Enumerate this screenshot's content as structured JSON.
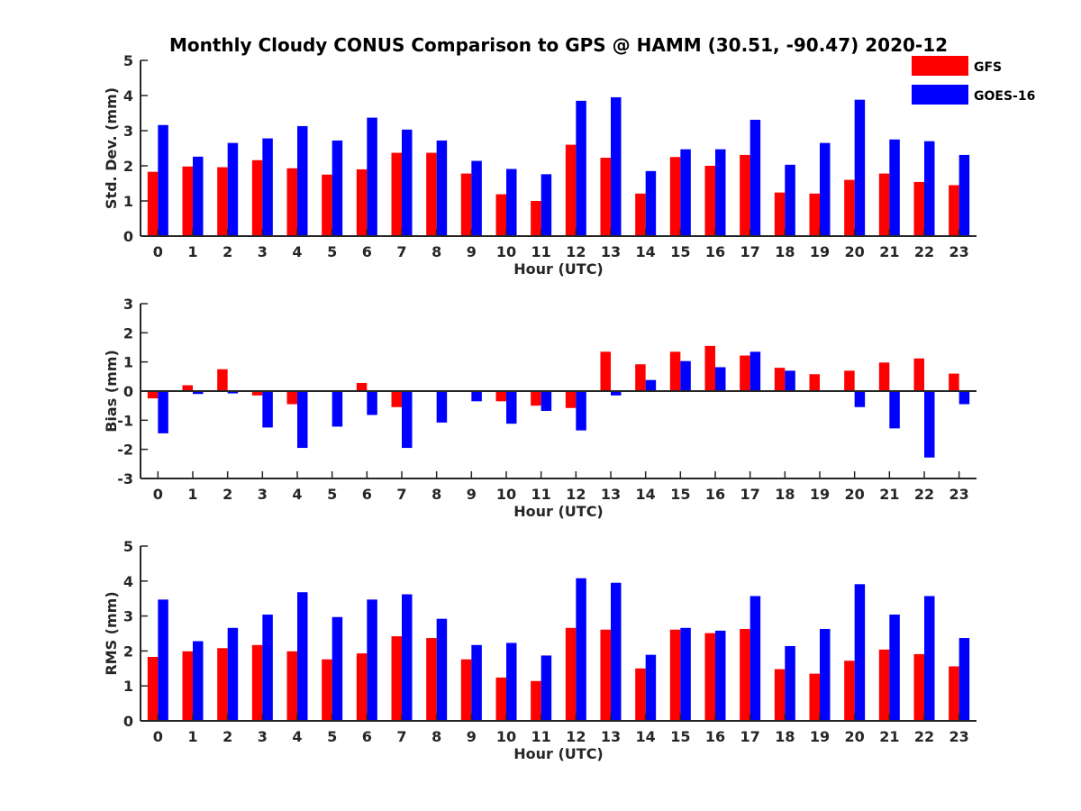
{
  "title": "Monthly Cloudy CONUS Comparison to GPS @ HAMM (30.51, -90.47) 2020-12",
  "legend": [
    {
      "name": "GFS",
      "color": "#ff0000"
    },
    {
      "name": "GOES-16",
      "color": "#0000ff"
    }
  ],
  "chart_data": [
    {
      "type": "bar",
      "xlabel": "Hour (UTC)",
      "ylabel": "Std. Dev. (mm)",
      "ylim": [
        0,
        5
      ],
      "yticks": [
        0,
        1,
        2,
        3,
        4,
        5
      ],
      "categories": [
        "0",
        "1",
        "2",
        "3",
        "4",
        "5",
        "6",
        "7",
        "8",
        "9",
        "10",
        "11",
        "12",
        "13",
        "14",
        "15",
        "16",
        "17",
        "18",
        "19",
        "20",
        "21",
        "22",
        "23"
      ],
      "series": [
        {
          "name": "GFS",
          "values": [
            1.83,
            1.98,
            1.96,
            2.16,
            1.93,
            1.75,
            1.9,
            2.37,
            2.37,
            1.78,
            1.19,
            1.0,
            2.6,
            2.23,
            1.21,
            2.25,
            2.0,
            2.31,
            1.24,
            1.21,
            1.6,
            1.78,
            1.54,
            1.45
          ]
        },
        {
          "name": "GOES-16",
          "values": [
            3.16,
            2.26,
            2.65,
            2.78,
            3.13,
            2.72,
            3.37,
            3.03,
            2.72,
            2.14,
            1.91,
            1.76,
            3.85,
            3.95,
            1.85,
            2.47,
            2.47,
            3.31,
            2.03,
            2.65,
            3.88,
            2.75,
            2.7,
            2.31
          ]
        }
      ]
    },
    {
      "type": "bar",
      "xlabel": "Hour (UTC)",
      "ylabel": "Bias (mm)",
      "ylim": [
        -3,
        3
      ],
      "yticks": [
        -3,
        -2,
        -1,
        0,
        1,
        2,
        3
      ],
      "categories": [
        "0",
        "1",
        "2",
        "3",
        "4",
        "5",
        "6",
        "7",
        "8",
        "9",
        "10",
        "11",
        "12",
        "13",
        "14",
        "15",
        "16",
        "17",
        "18",
        "19",
        "20",
        "21",
        "22",
        "23"
      ],
      "series": [
        {
          "name": "GFS",
          "values": [
            -0.25,
            0.2,
            0.75,
            -0.15,
            -0.45,
            0.02,
            0.28,
            -0.55,
            -0.02,
            -0.03,
            -0.35,
            -0.5,
            -0.58,
            1.35,
            0.92,
            1.35,
            1.55,
            1.22,
            0.8,
            0.58,
            0.7,
            0.98,
            1.12,
            0.6
          ]
        },
        {
          "name": "GOES-16",
          "values": [
            -1.45,
            -0.1,
            -0.08,
            -1.25,
            -1.95,
            -1.22,
            -0.82,
            -1.95,
            -1.08,
            -0.35,
            -1.12,
            -0.68,
            -1.35,
            -0.15,
            0.38,
            1.03,
            0.82,
            1.35,
            0.7,
            0.0,
            -0.55,
            -1.28,
            -2.28,
            -0.45
          ]
        }
      ]
    },
    {
      "type": "bar",
      "xlabel": "Hour (UTC)",
      "ylabel": "RMS (mm)",
      "ylim": [
        0,
        5
      ],
      "yticks": [
        0,
        1,
        2,
        3,
        4,
        5
      ],
      "categories": [
        "0",
        "1",
        "2",
        "3",
        "4",
        "5",
        "6",
        "7",
        "8",
        "9",
        "10",
        "11",
        "12",
        "13",
        "14",
        "15",
        "16",
        "17",
        "18",
        "19",
        "20",
        "21",
        "22",
        "23"
      ],
      "series": [
        {
          "name": "GFS",
          "values": [
            1.83,
            1.99,
            2.08,
            2.17,
            1.99,
            1.76,
            1.93,
            2.42,
            2.37,
            1.76,
            1.24,
            1.14,
            2.66,
            2.61,
            1.5,
            2.61,
            2.51,
            2.63,
            1.48,
            1.35,
            1.72,
            2.04,
            1.91,
            1.56
          ]
        },
        {
          "name": "GOES-16",
          "values": [
            3.47,
            2.28,
            2.66,
            3.04,
            3.68,
            2.97,
            3.47,
            3.62,
            2.92,
            2.17,
            2.23,
            1.87,
            4.08,
            3.95,
            1.89,
            2.66,
            2.58,
            3.57,
            2.14,
            2.63,
            3.91,
            3.04,
            3.57,
            2.37
          ]
        }
      ]
    }
  ]
}
